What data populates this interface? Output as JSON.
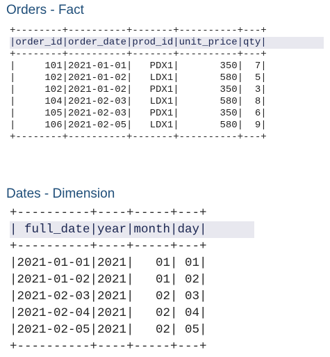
{
  "orders": {
    "title": "Orders - Fact",
    "lines": [
      "+--------+----------+-------+----------+---+",
      "|order_id|order_date|prod_id|unit_price|qty|",
      "+--------+----------+-------+----------+---+",
      "|     101|2021-01-01|   PDX1|       350|  7|",
      "|     102|2021-01-02|   LDX1|       580|  5|",
      "|     102|2021-01-02|   PDX1|       350|  3|",
      "|     104|2021-02-03|   LDX1|       580|  8|",
      "|     105|2021-02-03|   PDX1|       350|  6|",
      "|     106|2021-02-05|   LDX1|       580|  9|",
      "+--------+----------+-------+----------+---+"
    ]
  },
  "dates": {
    "title": "Dates - Dimension",
    "lines": [
      "+----------+----+-----+---+",
      "| full_date|year|month|day|",
      "+----------+----+-----+---+",
      "|2021-01-01|2021|   01| 01|",
      "|2021-01-02|2021|   01| 02|",
      "|2021-02-03|2021|   02| 03|",
      "|2021-02-04|2021|   02| 04|",
      "|2021-02-05|2021|   02| 05|",
      "+----------+----+-----+---+"
    ]
  }
}
